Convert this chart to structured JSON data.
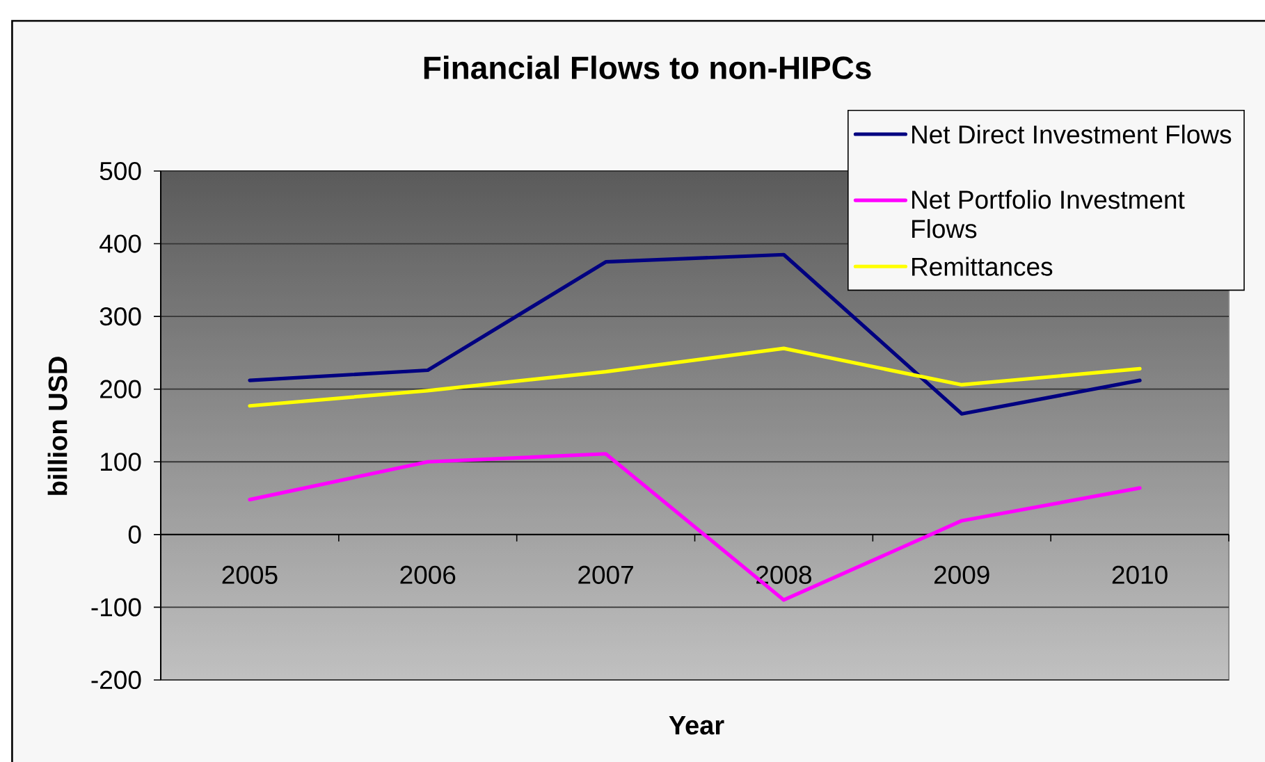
{
  "chart_data": {
    "type": "line",
    "title": "Financial Flows to non-HIPCs",
    "xlabel": "Year",
    "ylabel": "billion USD",
    "categories": [
      "2005",
      "2006",
      "2007",
      "2008",
      "2009",
      "2010"
    ],
    "series": [
      {
        "name": "Net Direct Investment Flows",
        "color": "#000080",
        "values": [
          212,
          226,
          375,
          385,
          166,
          212
        ]
      },
      {
        "name": "Net Portfolio Investment Flows",
        "color": "#ff00ff",
        "values": [
          48,
          100,
          111,
          -90,
          19,
          64
        ]
      },
      {
        "name": "Remittances",
        "color": "#ffff00",
        "values": [
          177,
          198,
          224,
          256,
          206,
          228
        ]
      }
    ],
    "ylim": [
      -200,
      500
    ],
    "yticks": [
      -200,
      -100,
      0,
      100,
      200,
      300,
      400,
      500
    ],
    "grid": "y",
    "legend": "top right"
  }
}
